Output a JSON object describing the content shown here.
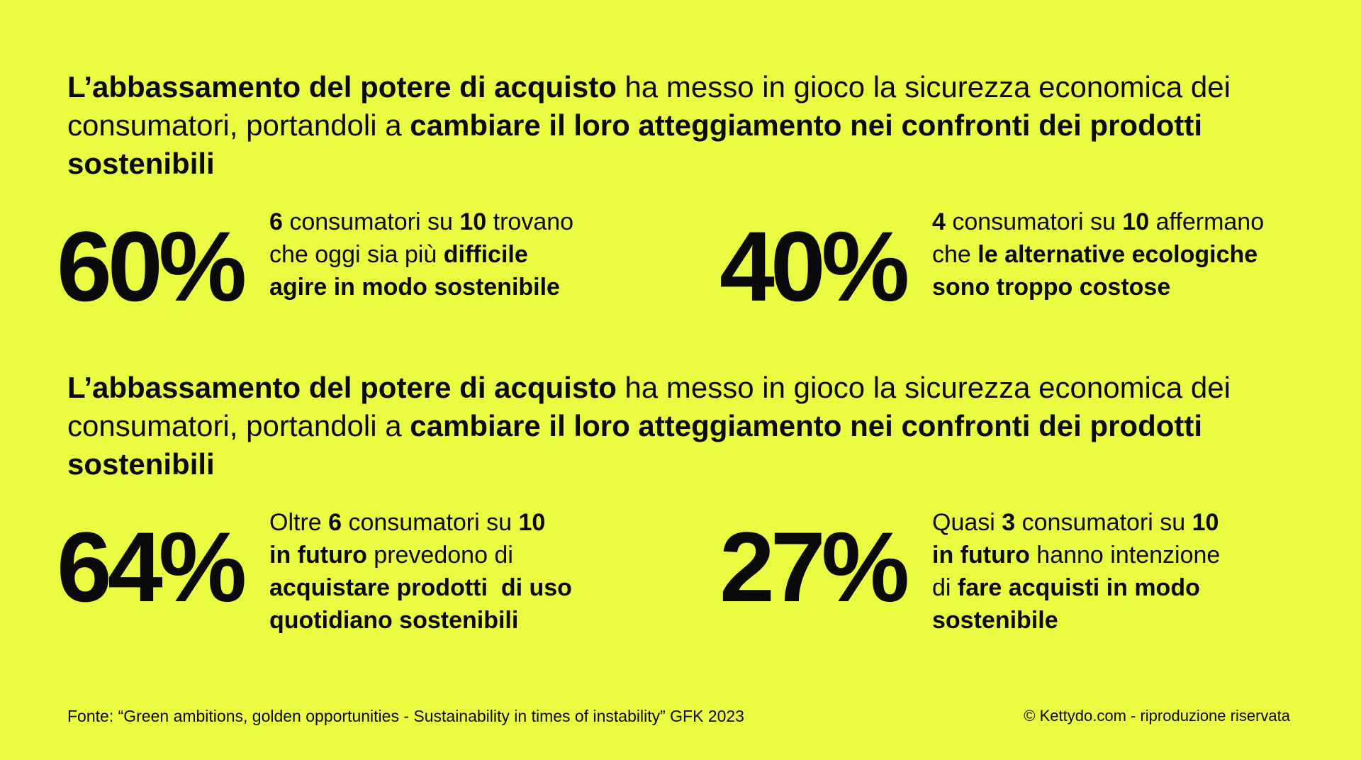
{
  "headline_1": {
    "bold_1": "L’abbassamento del potere di acquisto",
    "regular_1": " ha messo in gioco la sicurezza economica dei consumatori, portandoli a ",
    "bold_2": "cambiare il loro atteggiamento nei confronti dei prodotti sostenibili"
  },
  "headline_2": {
    "bold_1": "L’abbassamento del potere di acquisto",
    "regular_1": " ha messo in gioco la sicurezza economica dei consumatori, portandoli a ",
    "bold_2": "cambiare il loro atteggiamento nei confronti dei prodotti sostenibili"
  },
  "stats": [
    {
      "value": "60%",
      "line_1": {
        "b1": "6",
        "t1": " consumatori su ",
        "b2": "10",
        "t2": " trovano"
      },
      "line_2": {
        "t1": "che oggi sia più ",
        "b1": "difficile"
      },
      "line_3": {
        "b1": "agire in modo sostenibile"
      }
    },
    {
      "value": "40%",
      "line_1": {
        "b1": "4",
        "t1": " consumatori su ",
        "b2": "10",
        "t2": " affermano"
      },
      "line_2": {
        "t1": "che ",
        "b1": "le alternative ecologiche"
      },
      "line_3": {
        "b1": "sono troppo costose"
      }
    },
    {
      "value": "64%",
      "line_1": {
        "t1": "Oltre ",
        "b1": "6",
        "t2": " consumatori su ",
        "b2": "10"
      },
      "line_2": {
        "b1": "in futuro",
        "t1": " prevedono di"
      },
      "line_3": {
        "b1": "acquistare prodotti  di uso"
      },
      "line_4": {
        "b1": "quotidiano sostenibili"
      }
    },
    {
      "value": "27%",
      "line_1": {
        "t1": "Quasi ",
        "b1": "3",
        "t2": " consumatori su ",
        "b2": "10"
      },
      "line_2": {
        "b1": "in futuro",
        "t1": " hanno intenzione"
      },
      "line_3": {
        "t1": "di ",
        "b1": "fare acquisti in modo"
      },
      "line_4": {
        "b1": "sostenibile"
      }
    }
  ],
  "footer": {
    "source": "Fonte: “Green ambitions, golden opportunities - Sustainability in times of instability” GFK 2023",
    "copyright": "© Kettydo.com - riproduzione riservata"
  },
  "colors": {
    "background": "#ebfb42",
    "text": "#0a0a0a"
  }
}
